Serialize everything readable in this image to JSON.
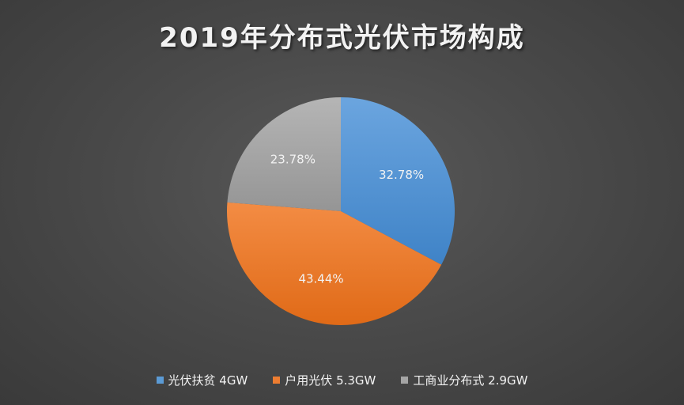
{
  "chart_data": {
    "type": "pie",
    "title": "2019年分布式光伏市场构成",
    "categories": [
      "光伏扶贫 4GW",
      "户用光伏 5.3GW",
      "工商业分布式 2.9GW"
    ],
    "values": [
      4,
      5.3,
      2.9
    ],
    "percent_labels": [
      "32.78%",
      "43.44%",
      "23.78%"
    ],
    "colors": [
      "#5b9bd5",
      "#ed7d31",
      "#a5a5a5"
    ],
    "legend_position": "bottom"
  }
}
